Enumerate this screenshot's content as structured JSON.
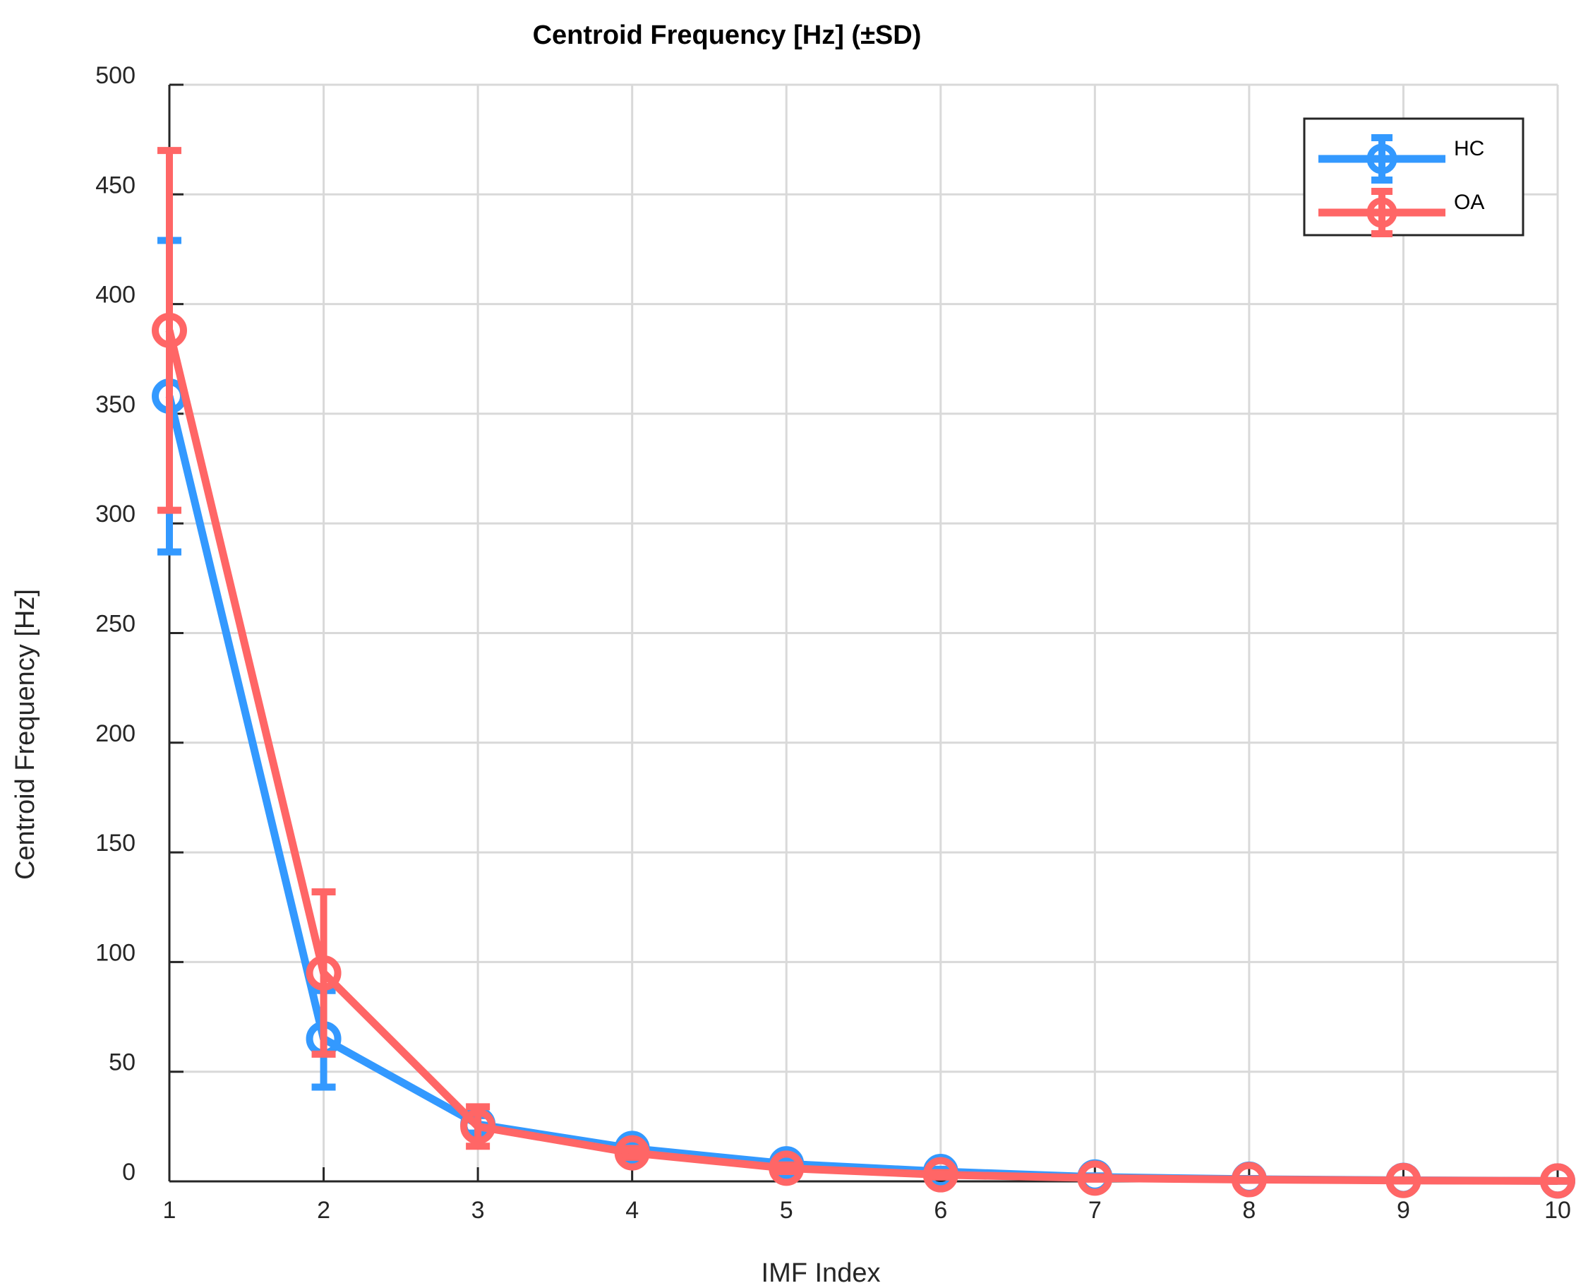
{
  "chart_data": {
    "type": "line",
    "title": "Centroid Frequency [Hz] (±SD)",
    "xlabel": "IMF Index",
    "ylabel": "Centroid Frequency [Hz]",
    "x": [
      1,
      2,
      3,
      4,
      5,
      6,
      7,
      8,
      9,
      10
    ],
    "xlim": [
      1,
      10
    ],
    "ylim": [
      0,
      500
    ],
    "xticks": [
      1,
      2,
      3,
      4,
      5,
      6,
      7,
      8,
      9,
      10
    ],
    "yticks": [
      0,
      50,
      100,
      150,
      200,
      250,
      300,
      350,
      400,
      450,
      500
    ],
    "grid": true,
    "legend_position": "top-right",
    "series": [
      {
        "name": "HC",
        "color": "#3399ff",
        "values": [
          358,
          65,
          26,
          15,
          8,
          4.5,
          2,
          1,
          0.5,
          0.2
        ],
        "sd": [
          71,
          22,
          4,
          2,
          1.5,
          1,
          0.5,
          0.3,
          0.2,
          0.1
        ]
      },
      {
        "name": "OA",
        "color": "#ff6666",
        "values": [
          388,
          95,
          25,
          13,
          6,
          3,
          1.5,
          0.8,
          0.4,
          0.2
        ],
        "sd": [
          82,
          37,
          9,
          2,
          1.5,
          1,
          0.5,
          0.3,
          0.2,
          0.1
        ]
      }
    ]
  }
}
